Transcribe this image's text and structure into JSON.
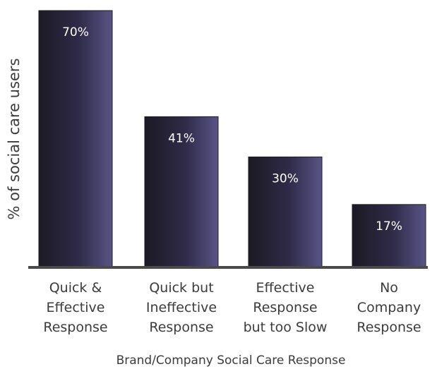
{
  "chart_data": {
    "type": "bar",
    "categories": [
      [
        "Quick &",
        "Effective",
        "Response"
      ],
      [
        "Quick but",
        "Ineffective",
        "Response"
      ],
      [
        "Effective",
        "Response",
        "but too Slow"
      ],
      [
        "No",
        "Company",
        "Response"
      ]
    ],
    "values": [
      70,
      41,
      30,
      17
    ],
    "data_labels": [
      "70%",
      "41%",
      "30%",
      "17%"
    ],
    "xlabel": "Brand/Company Social Care Response",
    "ylabel": "% of social care users",
    "ylim": [
      0,
      70
    ],
    "grid": false,
    "legend": "none",
    "colors": {
      "bar_dark": "#1b1a24",
      "bar_mid": "#2f2b48",
      "bar_light": "#5a5486",
      "baseline": "#4a4a4a",
      "label_text": "#ffffff",
      "axis_text": "#3b3b3b"
    }
  }
}
